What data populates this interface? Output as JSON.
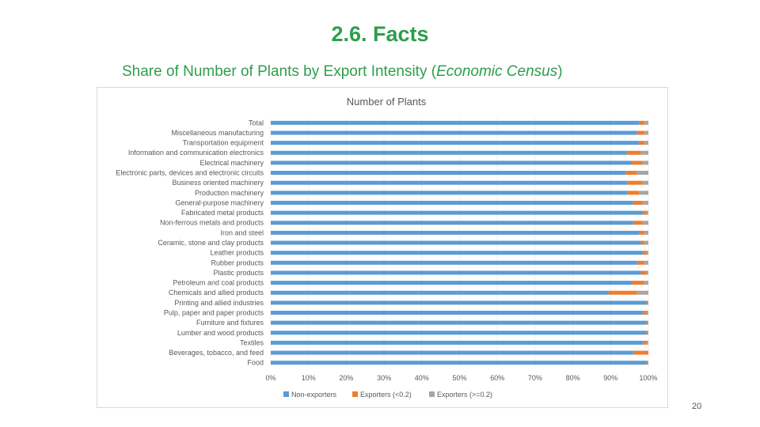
{
  "slide": {
    "title": "2.6. Facts",
    "subtitle_main": "Share of Number of Plants by Export Intensity  (",
    "subtitle_italic": "Economic Census",
    "subtitle_end": ")",
    "page_number": "20"
  },
  "chart_data": {
    "type": "bar",
    "orientation": "horizontal",
    "stacked": "percent",
    "title": "Number of Plants",
    "xlim": [
      0,
      100
    ],
    "x_ticks": [
      "0%",
      "10%",
      "20%",
      "30%",
      "40%",
      "50%",
      "60%",
      "70%",
      "80%",
      "90%",
      "100%"
    ],
    "legend_position": "bottom",
    "categories": [
      "Total",
      "Miscellaneous manufacturing",
      "Transportation equipment",
      "Information and communication electronics",
      "Electrical machinery",
      "Electronic parts, devices and electronic circuits",
      "Business oriented machinery",
      "Production machinery",
      "General-purpose machinery",
      "Fabricated metal products",
      "Non-ferrous metals and products",
      "Iron and steel",
      "Ceramic, stone and clay products",
      "Leather products",
      "Rubber products",
      "Plastic products",
      "Petroleum and coal products",
      "Chemicals and allied products",
      "Printing and allied industries",
      "Pulp, paper and paper products",
      "Furniture and fixtures",
      "Lumber and wood products",
      "Textiles",
      "Beverages, tobacco, and feed",
      "Food"
    ],
    "series": [
      {
        "name": "Non-exporters",
        "color": "#5b9bd5",
        "values": [
          97.5,
          97,
          97.5,
          94.5,
          95.5,
          94,
          94.5,
          94.5,
          96,
          98.5,
          96,
          97.5,
          98,
          98.5,
          97,
          98,
          95.5,
          89.5,
          99.5,
          98.5,
          99.5,
          99.5,
          98.5,
          96,
          99.5
        ]
      },
      {
        "name": "Exporters (<0.2)",
        "color": "#ed7d31",
        "values": [
          1.5,
          2,
          1.5,
          3.5,
          3,
          3,
          4,
          3,
          2.5,
          1,
          2.5,
          1.5,
          1,
          1,
          2,
          1.5,
          3.5,
          7.5,
          0.3,
          1,
          0.3,
          0.3,
          1,
          4,
          0.3
        ]
      },
      {
        "name": "Exporters (>=0.2)",
        "color": "#a5a5a5",
        "values": [
          1,
          1,
          1,
          2,
          1.5,
          3,
          1.5,
          2.5,
          1.5,
          0.5,
          1.5,
          1,
          1,
          0.5,
          1,
          0.5,
          1,
          3,
          0.2,
          0.5,
          0.2,
          0.2,
          0.5,
          0,
          0.2
        ]
      }
    ]
  }
}
